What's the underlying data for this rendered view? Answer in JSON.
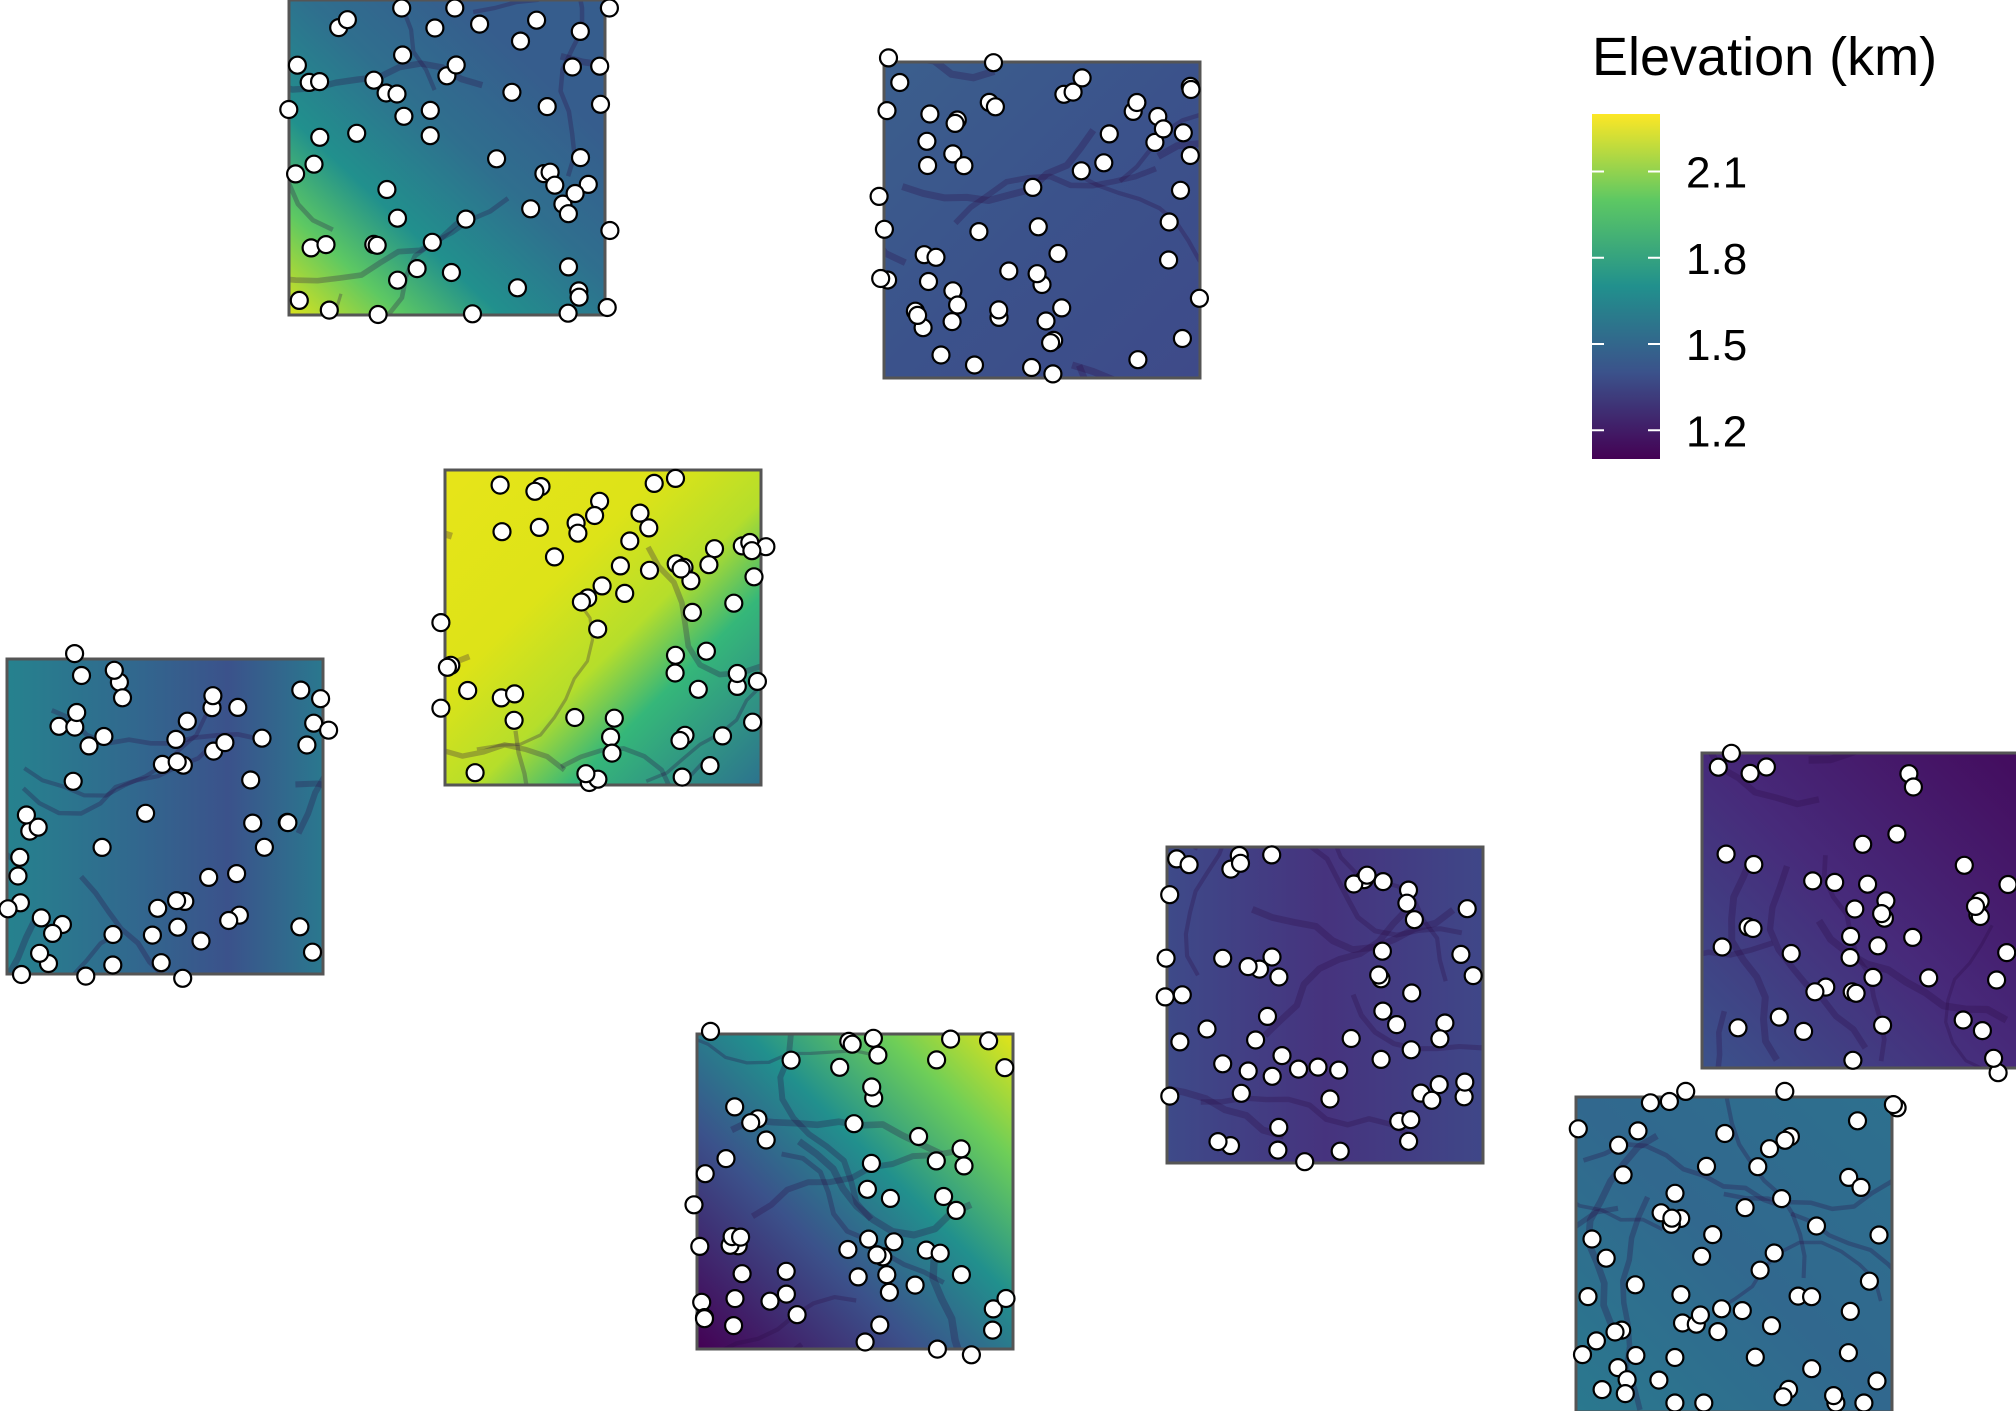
{
  "legend": {
    "title": "Elevation (km)",
    "ticks": [
      {
        "value": 2.1,
        "label": "2.1"
      },
      {
        "value": 1.8,
        "label": "1.8"
      },
      {
        "value": 1.5,
        "label": "1.5"
      },
      {
        "value": 1.2,
        "label": "1.2"
      }
    ],
    "range_km": [
      1.1,
      2.3
    ],
    "palette": [
      "#440154",
      "#3b528b",
      "#21908d",
      "#5dc863",
      "#fde725"
    ]
  },
  "colors": {
    "site_fill": "#ffffff",
    "site_stroke": "#000000",
    "tile_border": "#555555",
    "background": "#ffffff"
  },
  "icons": {
    "site_marker": "white-circle-icon"
  },
  "tiles": [
    {
      "id": "tile-1",
      "elevation_km": {
        "mean": 1.55,
        "low": 1.4,
        "high": 2.25
      },
      "gradient": "high-bottom-left",
      "site_count": 64
    },
    {
      "id": "tile-2",
      "elevation_km": {
        "mean": 1.4,
        "low": 1.15,
        "high": 1.55
      },
      "gradient": "channels",
      "site_count": 64
    },
    {
      "id": "tile-3",
      "elevation_km": {
        "mean": 2.1,
        "low": 1.45,
        "high": 2.3
      },
      "gradient": "high-center-diagonal",
      "site_count": 64
    },
    {
      "id": "tile-4",
      "elevation_km": {
        "mean": 1.6,
        "low": 1.3,
        "high": 1.9
      },
      "gradient": "low-center-channel",
      "site_count": 64
    },
    {
      "id": "tile-5",
      "elevation_km": {
        "mean": 1.45,
        "low": 1.1,
        "high": 2.25
      },
      "gradient": "high-top-right",
      "site_count": 64
    },
    {
      "id": "tile-6",
      "elevation_km": {
        "mean": 1.3,
        "low": 1.15,
        "high": 1.6
      },
      "gradient": "channels",
      "site_count": 64
    },
    {
      "id": "tile-7",
      "elevation_km": {
        "mean": 1.25,
        "low": 1.1,
        "high": 1.5
      },
      "gradient": "channels",
      "site_count": 48
    },
    {
      "id": "tile-8",
      "elevation_km": {
        "mean": 1.6,
        "low": 1.4,
        "high": 1.85
      },
      "gradient": "patchy",
      "site_count": 70
    }
  ]
}
